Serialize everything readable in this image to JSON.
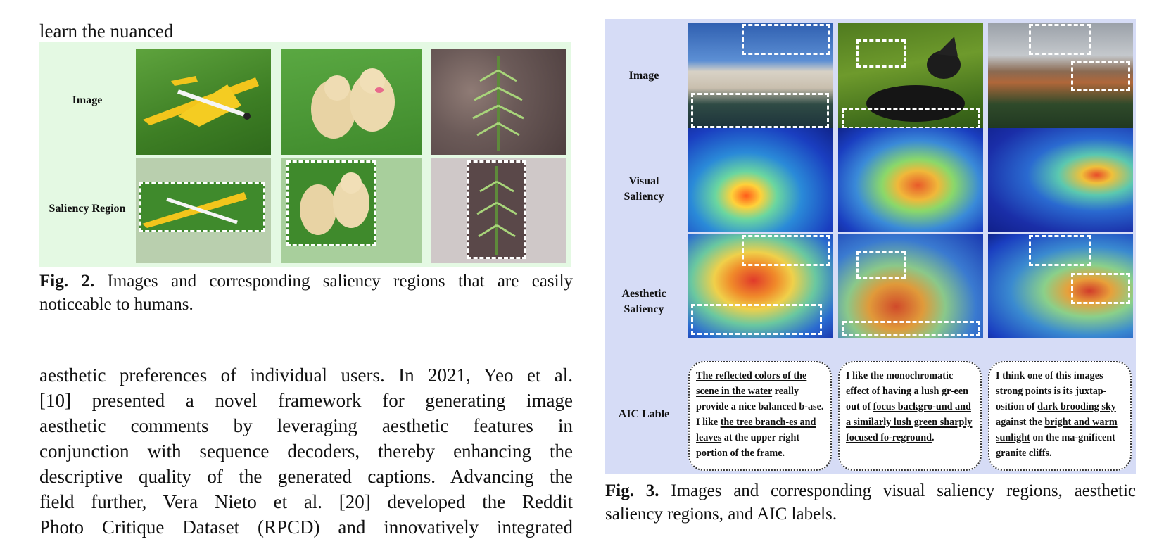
{
  "left_column": {
    "top_line": "learn the nuanced",
    "fig2": {
      "row_labels": [
        "Image",
        "Saliency Region"
      ],
      "caption_bold": "Fig. 2.",
      "caption_lines": [
        "Images and corresponding saliency regions that are easily",
        "noticeable to humans."
      ]
    },
    "paragraph_lines": [
      "aesthetic preferences of individual users. In 2021, Yeo et al.",
      "[10] presented a novel framework for generating image",
      "aesthetic comments by leveraging aesthetic features in",
      "conjunction with sequence decoders, thereby enhancing the",
      "descriptive quality of the generated captions. Advancing the",
      "field further, Vera  Nieto et al. [20] developed the Reddit",
      "Photo Critique Dataset (RPCD) and innovatively integrated"
    ]
  },
  "right_column": {
    "fig3": {
      "row_labels": {
        "image": "Image",
        "visual_1": "Visual",
        "visual_2": "Saliency",
        "aesthetic_1": "Aesthetic",
        "aesthetic_2": "Saliency",
        "aic": "AIC Lable"
      },
      "aic_labels": [
        {
          "segments": [
            {
              "text": "The reflected colors of the scene in the water",
              "u": true
            },
            {
              "text": " really provide a nice balanced b-ase. I like ",
              "u": false
            },
            {
              "text": "the tree branch-es and leaves",
              "u": true
            },
            {
              "text": " at the upper right portion of the frame.",
              "u": false
            }
          ]
        },
        {
          "segments": [
            {
              "text": "I like the monochromatic effect of having a lush gr-een out of ",
              "u": false
            },
            {
              "text": "focus backgro-und and a similarly lush green sharply focused fo-reground",
              "u": true
            },
            {
              "text": ".",
              "u": false
            }
          ]
        },
        {
          "segments": [
            {
              "text": "I think one of this images strong points is its juxtap-osition of ",
              "u": false
            },
            {
              "text": "dark brooding sky",
              "u": true
            },
            {
              "text": " against the ",
              "u": false
            },
            {
              "text": "bright and warm sunlight",
              "u": true
            },
            {
              "text": " on the ma-gnificent granite cliffs.",
              "u": false
            }
          ]
        }
      ],
      "caption_bold": "Fig. 3.",
      "caption_lines": [
        "Images and corresponding visual saliency regions, aesthetic",
        "saliency regions, and AIC labels."
      ]
    }
  },
  "colors": {
    "fig2_panel": "#e4f9e3",
    "fig3_panel": "#d6dcf6",
    "photo_grass": "#3f8a2c",
    "photo_sky": "#3a6db8"
  }
}
